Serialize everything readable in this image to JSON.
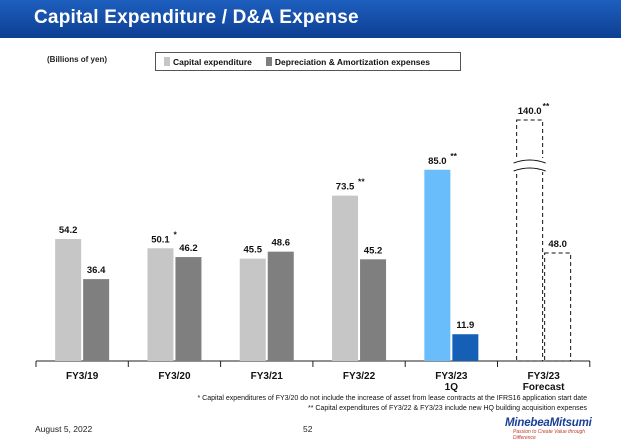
{
  "header": {
    "title": "Capital Expenditure / D&A Expense"
  },
  "chart_data": {
    "type": "bar",
    "title": "Capital Expenditure / D&A Expense",
    "unit_label": "(Billions of yen)",
    "categories": [
      {
        "label": "FY3/19",
        "sublabel": ""
      },
      {
        "label": "FY3/20",
        "sublabel": ""
      },
      {
        "label": "FY3/21",
        "sublabel": ""
      },
      {
        "label": "FY3/22",
        "sublabel": ""
      },
      {
        "label": "FY3/23",
        "sublabel": "1Q"
      },
      {
        "label": "FY3/23",
        "sublabel": "Forecast"
      }
    ],
    "series": [
      {
        "name": "Capital expenditure",
        "values": [
          54.2,
          50.1,
          45.5,
          73.5,
          85.0,
          140.0
        ],
        "labels": [
          "54.2",
          "50.1",
          "45.5",
          "73.5",
          "85.0",
          "140.0"
        ],
        "marks": [
          "",
          "*",
          "",
          "**",
          "**",
          "**"
        ],
        "color": "#c6c6c6",
        "period_colors": [
          "#c6c6c6",
          "#c6c6c6",
          "#c6c6c6",
          "#c6c6c6",
          "#69bdfa",
          "none"
        ]
      },
      {
        "name": "Depreciation & Amortization expenses",
        "values": [
          36.4,
          46.2,
          48.6,
          45.2,
          11.9,
          48.0
        ],
        "labels": [
          "36.4",
          "46.2",
          "48.6",
          "45.2",
          "11.9",
          "48.0"
        ],
        "marks": [
          "",
          "",
          "",
          "",
          "",
          ""
        ],
        "color": "#7f7f7f",
        "period_colors": [
          "#7f7f7f",
          "#7f7f7f",
          "#7f7f7f",
          "#7f7f7f",
          "#1560b6",
          "none"
        ]
      }
    ],
    "forecast_index": 5,
    "axis_break": true,
    "ylim": [
      0,
      140
    ]
  },
  "footnotes": [
    "* Capital expenditures of FY3/20 do not include the increase of asset from lease contracts at the IFRS16 application start date",
    "** Capital expenditures of FY3/22 & FY3/23 include new HQ building acquisition expenses"
  ],
  "footer": {
    "date": "August 5, 2022",
    "page": "52",
    "logo_name": "MinebeaMitsumi",
    "logo_tagline": "Passion to Create Value through Difference"
  },
  "colors": {
    "header": "#1a52ad",
    "capex": "#c6c6c6",
    "da": "#7f7f7f",
    "capex_q1": "#69bdfa",
    "da_q1": "#1560b6"
  }
}
